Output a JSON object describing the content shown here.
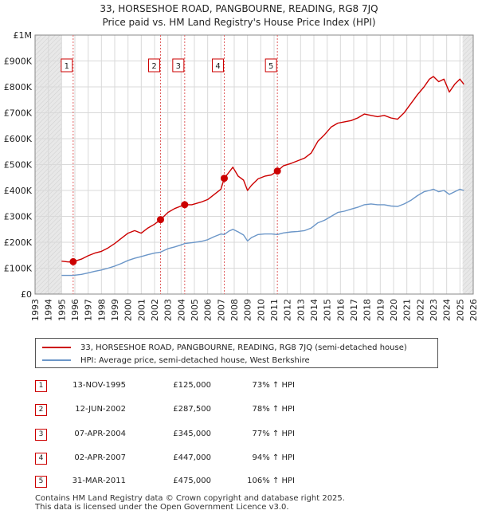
{
  "title_line1": "33, HORSESHOE ROAD, PANGBOURNE, READING, RG8 7JQ",
  "title_line2": "Price paid vs. HM Land Registry's House Price Index (HPI)",
  "legend": {
    "property": "33, HORSESHOE ROAD, PANGBOURNE, READING, RG8 7JQ (semi-detached house)",
    "hpi": "HPI: Average price, semi-detached house, West Berkshire"
  },
  "colors": {
    "property": "#cc0000",
    "hpi": "#6b96c8",
    "grid": "#d9d9d9",
    "shade": "#e8e8e8"
  },
  "transactions": [
    {
      "num": "1",
      "date": "13-NOV-1995",
      "price": "£125,000",
      "hpi": "73% ↑ HPI"
    },
    {
      "num": "2",
      "date": "12-JUN-2002",
      "price": "£287,500",
      "hpi": "78% ↑ HPI"
    },
    {
      "num": "3",
      "date": "07-APR-2004",
      "price": "£345,000",
      "hpi": "77% ↑ HPI"
    },
    {
      "num": "4",
      "date": "02-APR-2007",
      "price": "£447,000",
      "hpi": "94% ↑ HPI"
    },
    {
      "num": "5",
      "date": "31-MAR-2011",
      "price": "£475,000",
      "hpi": "106% ↑ HPI"
    }
  ],
  "footer_line1": "Contains HM Land Registry data © Crown copyright and database right 2025.",
  "footer_line2": "This data is licensed under the Open Government Licence v3.0.",
  "chart_data": {
    "type": "line",
    "title": "33, HORSESHOE ROAD, PANGBOURNE, READING, RG8 7JQ",
    "subtitle": "Price paid vs. HM Land Registry's House Price Index (HPI)",
    "xlabel": "",
    "ylabel": "",
    "xlim": [
      1993,
      2026
    ],
    "ylim": [
      0,
      1000000
    ],
    "grid": true,
    "legend_position": "bottom",
    "x_ticks": [
      1993,
      1994,
      1995,
      1996,
      1997,
      1998,
      1999,
      2000,
      2001,
      2002,
      2003,
      2004,
      2005,
      2006,
      2007,
      2008,
      2009,
      2010,
      2011,
      2012,
      2013,
      2014,
      2015,
      2016,
      2017,
      2018,
      2019,
      2020,
      2021,
      2022,
      2023,
      2024,
      2025,
      2026
    ],
    "y_ticks": [
      0,
      100000,
      200000,
      300000,
      400000,
      500000,
      600000,
      700000,
      800000,
      900000,
      1000000
    ],
    "y_tick_labels": [
      "£0",
      "£100K",
      "£200K",
      "£300K",
      "£400K",
      "£500K",
      "£600K",
      "£700K",
      "£800K",
      "£900K",
      "£1M"
    ],
    "shaded_ranges": [
      [
        1993,
        1995.0
      ],
      [
        2025.2,
        2026
      ]
    ],
    "sales": [
      {
        "num": "1",
        "x": 1995.87,
        "y": 125000
      },
      {
        "num": "2",
        "x": 2002.45,
        "y": 287500
      },
      {
        "num": "3",
        "x": 2004.27,
        "y": 345000
      },
      {
        "num": "4",
        "x": 2007.25,
        "y": 447000
      },
      {
        "num": "5",
        "x": 2011.25,
        "y": 475000
      }
    ],
    "series": [
      {
        "name": "33, HORSESHOE ROAD, PANGBOURNE, READING, RG8 7JQ (semi-detached house)",
        "x": [
          1995.0,
          1995.5,
          1995.87,
          1996.5,
          1997.0,
          1997.5,
          1998.0,
          1998.5,
          1999.0,
          1999.5,
          2000.0,
          2000.5,
          2001.0,
          2001.5,
          2002.0,
          2002.45,
          2003.0,
          2003.5,
          2004.0,
          2004.27,
          2004.8,
          2005.5,
          2006.0,
          2006.5,
          2007.0,
          2007.25,
          2007.6,
          2007.9,
          2008.3,
          2008.7,
          2009.0,
          2009.3,
          2009.8,
          2010.3,
          2010.8,
          2011.25,
          2011.7,
          2012.3,
          2012.8,
          2013.3,
          2013.8,
          2014.3,
          2014.8,
          2015.3,
          2015.8,
          2016.3,
          2016.8,
          2017.3,
          2017.8,
          2018.3,
          2018.8,
          2019.3,
          2019.8,
          2020.3,
          2020.8,
          2021.3,
          2021.8,
          2022.3,
          2022.7,
          2023.0,
          2023.4,
          2023.8,
          2024.2,
          2024.6,
          2025.0,
          2025.3
        ],
        "y": [
          127000,
          124000,
          125000,
          135000,
          148000,
          158000,
          165000,
          178000,
          195000,
          215000,
          235000,
          245000,
          235000,
          255000,
          270000,
          287500,
          315000,
          330000,
          340000,
          345000,
          345000,
          355000,
          365000,
          385000,
          405000,
          447000,
          470000,
          490000,
          455000,
          440000,
          400000,
          420000,
          445000,
          455000,
          460000,
          475000,
          495000,
          505000,
          515000,
          525000,
          545000,
          590000,
          615000,
          645000,
          660000,
          665000,
          670000,
          680000,
          695000,
          690000,
          685000,
          690000,
          680000,
          675000,
          700000,
          735000,
          770000,
          800000,
          830000,
          840000,
          820000,
          830000,
          780000,
          810000,
          830000,
          810000
        ]
      },
      {
        "name": "HPI: Average price, semi-detached house, West Berkshire",
        "x": [
          1995.0,
          1995.5,
          1995.87,
          1996.5,
          1997.0,
          1997.5,
          1998.0,
          1998.5,
          1999.0,
          1999.5,
          2000.0,
          2000.5,
          2001.0,
          2001.5,
          2002.0,
          2002.45,
          2003.0,
          2003.5,
          2004.0,
          2004.27,
          2004.8,
          2005.5,
          2006.0,
          2006.5,
          2007.0,
          2007.25,
          2007.6,
          2007.9,
          2008.3,
          2008.7,
          2009.0,
          2009.3,
          2009.8,
          2010.3,
          2010.8,
          2011.25,
          2011.7,
          2012.3,
          2012.8,
          2013.3,
          2013.8,
          2014.3,
          2014.8,
          2015.3,
          2015.8,
          2016.3,
          2016.8,
          2017.3,
          2017.8,
          2018.3,
          2018.8,
          2019.3,
          2019.8,
          2020.3,
          2020.8,
          2021.3,
          2021.8,
          2022.3,
          2022.7,
          2023.0,
          2023.4,
          2023.8,
          2024.2,
          2024.6,
          2025.0,
          2025.3
        ],
        "y": [
          72000,
          72000,
          72000,
          76000,
          82000,
          88000,
          93000,
          100000,
          108000,
          118000,
          130000,
          138000,
          145000,
          152000,
          158000,
          162000,
          175000,
          182000,
          190000,
          195000,
          198000,
          203000,
          210000,
          222000,
          232000,
          230000,
          243000,
          250000,
          240000,
          228000,
          205000,
          218000,
          230000,
          232000,
          232000,
          230000,
          236000,
          240000,
          242000,
          245000,
          255000,
          275000,
          285000,
          300000,
          315000,
          320000,
          328000,
          335000,
          345000,
          348000,
          345000,
          345000,
          340000,
          338000,
          348000,
          362000,
          380000,
          395000,
          400000,
          405000,
          395000,
          400000,
          385000,
          395000,
          405000,
          400000
        ]
      }
    ]
  }
}
